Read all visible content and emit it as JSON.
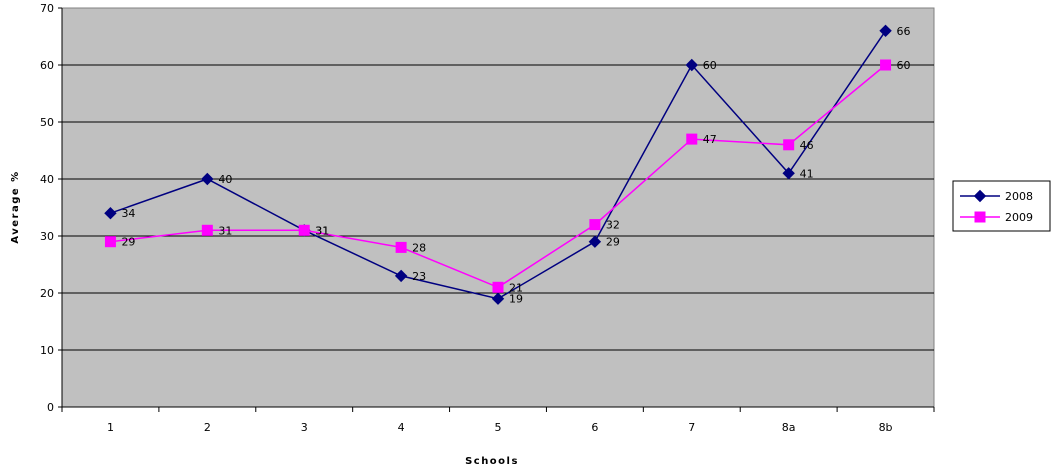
{
  "chart_data": {
    "type": "line",
    "categories": [
      "1",
      "2",
      "3",
      "4",
      "5",
      "6",
      "7",
      "8a",
      "8b"
    ],
    "series": [
      {
        "name": "2008",
        "values": [
          34,
          40,
          31,
          23,
          19,
          29,
          60,
          41,
          66
        ],
        "color": "#000080",
        "marker": "diamond"
      },
      {
        "name": "2009",
        "values": [
          29,
          31,
          31,
          28,
          21,
          32,
          47,
          46,
          60
        ],
        "color": "#ff00ff",
        "marker": "square"
      }
    ],
    "xlabel": "Schools",
    "ylabel": "Average %",
    "ylim": [
      0,
      70
    ],
    "yticks": [
      0,
      10,
      20,
      30,
      40,
      50,
      60,
      70
    ],
    "grid": true,
    "plot_background": "#c0c0c0",
    "legend_position": "right"
  }
}
